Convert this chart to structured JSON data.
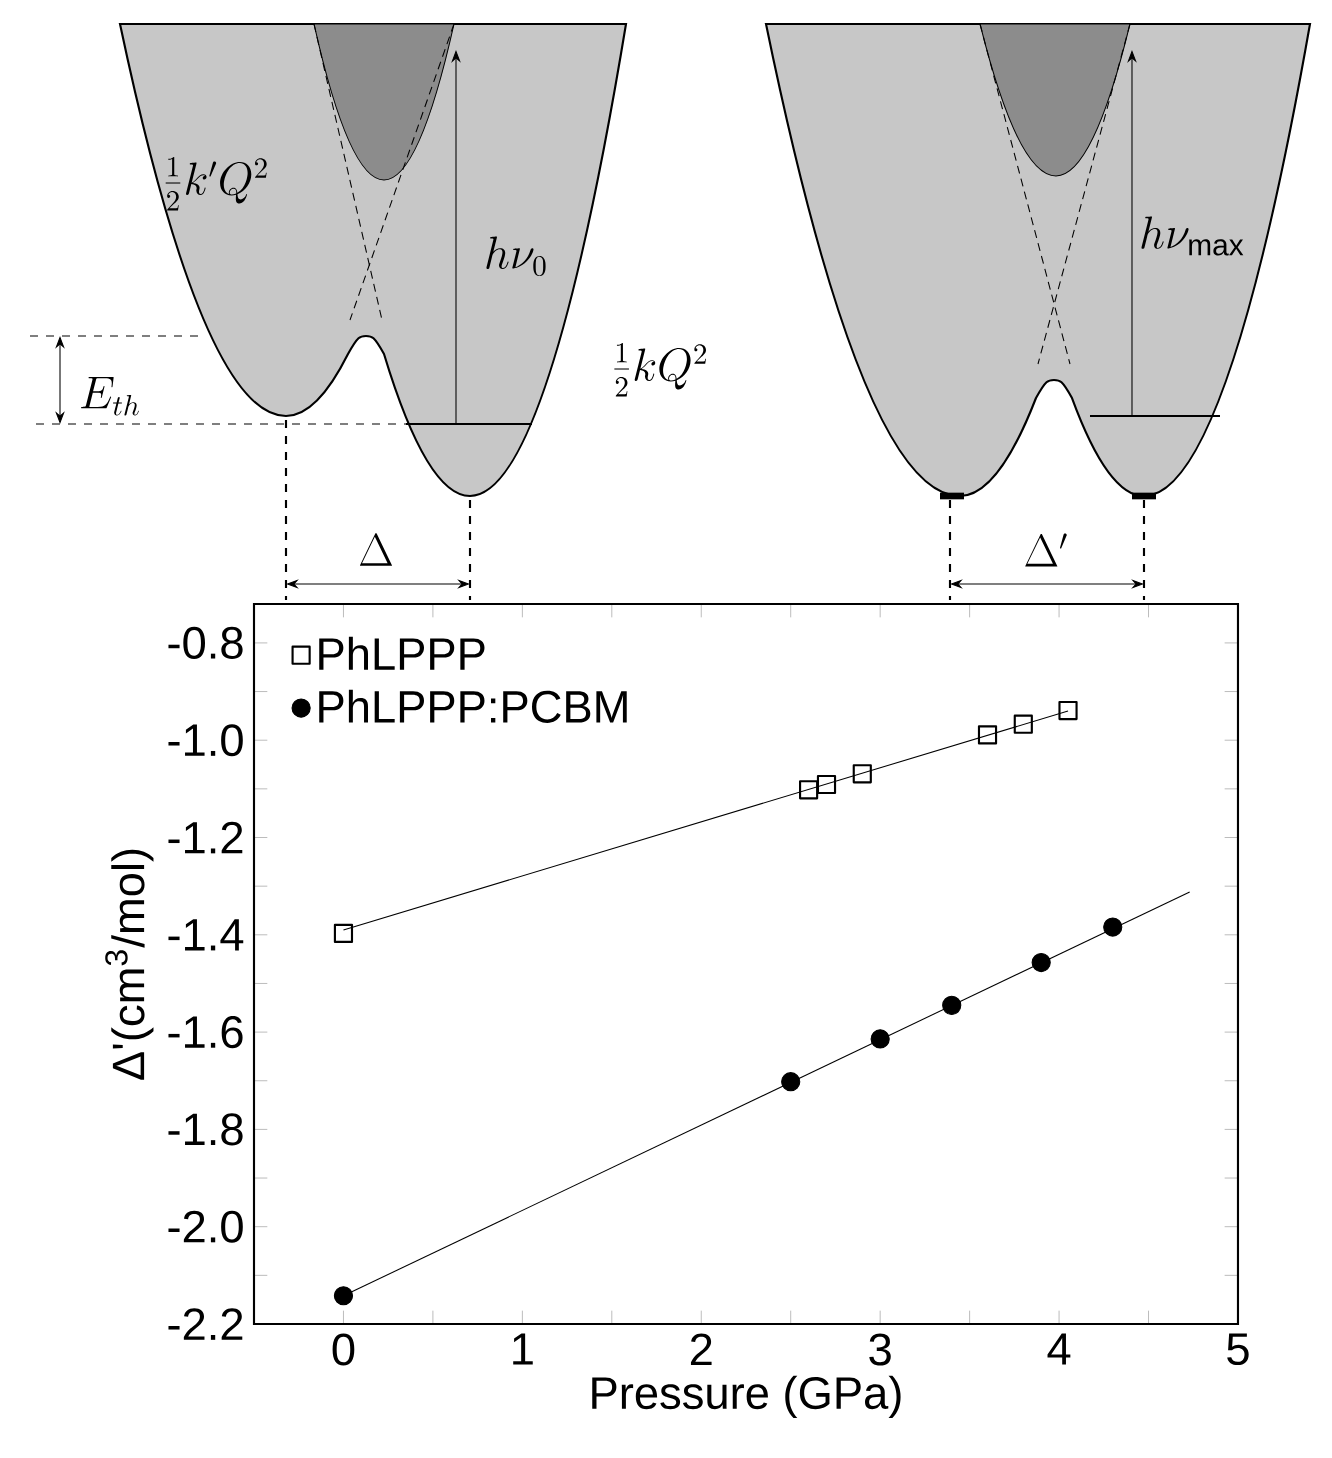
{
  "chart_data": {
    "type": "scatter",
    "xlabel": "Pressure (GPa)",
    "ylabel": "Δ'(cm$^{3}$/mol)",
    "xlim": [
      -0.5,
      5
    ],
    "ylim": [
      -2.2,
      -0.72
    ],
    "xticks": [
      0,
      {
        "value": 0.5,
        "label": null
      },
      1,
      {
        "value": 1.5,
        "label": null
      },
      2,
      {
        "value": 2.5,
        "label": null
      },
      3,
      {
        "value": 3.5,
        "label": null
      },
      4,
      {
        "value": 4.5,
        "label": null
      },
      5
    ],
    "yticks": [
      {
        "value": -2.2,
        "label": "-2.2"
      },
      {
        "value": -2.1,
        "label": null
      },
      {
        "value": -2.0,
        "label": "-2.0"
      },
      {
        "value": -1.9,
        "label": null
      },
      {
        "value": -1.8,
        "label": "-1.8"
      },
      {
        "value": -1.7,
        "label": null
      },
      {
        "value": -1.6,
        "label": "-1.6"
      },
      {
        "value": -1.5,
        "label": null
      },
      {
        "value": -1.4,
        "label": "-1.4"
      },
      {
        "value": -1.3,
        "label": null
      },
      {
        "value": -1.2,
        "label": "-1.2"
      },
      {
        "value": -1.1,
        "label": null
      },
      {
        "value": -1.0,
        "label": "-1.0"
      },
      {
        "value": -0.9,
        "label": null
      },
      {
        "value": -0.8,
        "label": "-0.8"
      }
    ],
    "legend": "top left",
    "series": [
      {
        "name": "PhLPPP",
        "color": "#000000",
        "marker": "square",
        "x": [
          0,
          2.6,
          2.7,
          2.9,
          3.6,
          3.8,
          4.05
        ],
        "values": [
          -1.397,
          -1.102,
          -1.091,
          -1.069,
          -0.989,
          -0.967,
          -0.939
        ]
      },
      {
        "name": "PhLPPP:PCBM",
        "color": "#000000",
        "marker": "circle",
        "x": [
          0,
          2.5,
          3.0,
          3.4,
          3.9,
          4.3
        ],
        "values": [
          -2.142,
          -1.702,
          -1.614,
          -1.545,
          -1.457,
          -1.384
        ]
      },
      {
        "type": "line",
        "color": "#000000",
        "marker": "none",
        "x": [
          0,
          4.05
        ],
        "values": [
          -1.39,
          -0.94
        ]
      },
      {
        "type": "line",
        "color": "#000000",
        "marker": "none",
        "x": [
          0,
          4.73
        ],
        "values": [
          -2.142,
          -1.312
        ]
      }
    ],
    "annotations": [
      "\\frac{1}{2}k'Q^{2}",
      "h\\nu_{0}",
      "\\frac{1}{2}kQ^{2}",
      "E_{th}",
      "\\Delta",
      "h\\nu_{\\mathrm{max}}",
      "\\Delta'"
    ]
  }
}
